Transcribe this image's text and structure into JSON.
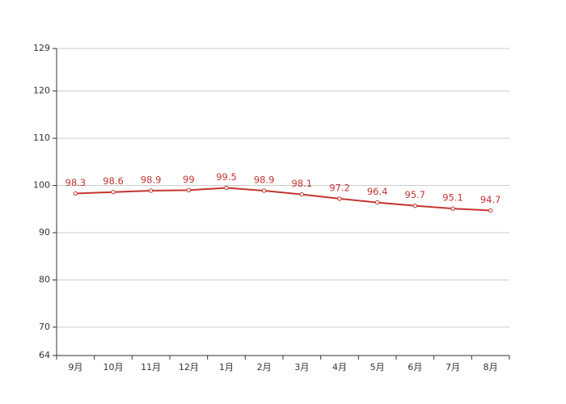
{
  "chart_data": {
    "type": "line",
    "categories": [
      "9月",
      "10月",
      "11月",
      "12月",
      "1月",
      "2月",
      "3月",
      "4月",
      "5月",
      "6月",
      "7月",
      "8月"
    ],
    "values": [
      98.3,
      98.6,
      98.9,
      99,
      99.5,
      98.9,
      98.1,
      97.2,
      96.4,
      95.7,
      95.1,
      94.7
    ],
    "color": "#c23531",
    "ylim": [
      64,
      129
    ],
    "yticks": [
      64,
      70,
      80,
      90,
      100,
      110,
      120,
      129
    ],
    "grid": true
  }
}
